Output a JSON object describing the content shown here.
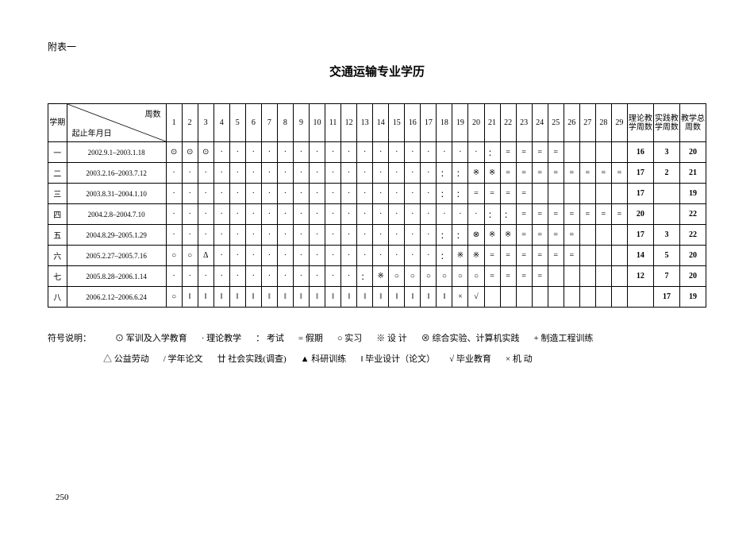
{
  "appendix": "附表一",
  "title": "交通运输专业学历",
  "header": {
    "semester": "学期",
    "diag_top": "周数",
    "diag_bot": "起止年月日",
    "week_count": 29,
    "sum1": "理论教学周数",
    "sum2": "实践教学周数",
    "sum3": "教学总周数"
  },
  "rows": [
    {
      "sem": "一",
      "date": "2002.9.1–2003.1.18",
      "cells": [
        "⊙",
        "⊙",
        "⊙",
        "·",
        "·",
        "·",
        "·",
        "·",
        "·",
        "·",
        "·",
        "·",
        "·",
        "·",
        "·",
        "·",
        "·",
        "·",
        "·",
        "·",
        "：",
        "=",
        "=",
        "=",
        "=",
        "",
        "",
        "",
        ""
      ],
      "s1": "16",
      "s2": "3",
      "s3": "20"
    },
    {
      "sem": "二",
      "date": "2003.2.16–2003.7.12",
      "cells": [
        "·",
        "·",
        "·",
        "·",
        "·",
        "·",
        "·",
        "·",
        "·",
        "·",
        "·",
        "·",
        "·",
        "·",
        "·",
        "·",
        "·",
        "：",
        "：",
        "※",
        "※",
        "=",
        "=",
        "=",
        "=",
        "=",
        "=",
        "=",
        "="
      ],
      "s1": "17",
      "s2": "2",
      "s3": "21"
    },
    {
      "sem": "三",
      "date": "2003.8.31–2004.1.10",
      "cells": [
        "·",
        "·",
        "·",
        "·",
        "·",
        "·",
        "·",
        "·",
        "·",
        "·",
        "·",
        "·",
        "·",
        "·",
        "·",
        "·",
        "·",
        "：",
        "：",
        "=",
        "=",
        "=",
        "=",
        "",
        "",
        "",
        "",
        "",
        ""
      ],
      "s1": "17",
      "s2": "",
      "s3": "19"
    },
    {
      "sem": "四",
      "date": "2004.2.8–2004.7.10",
      "cells": [
        "·",
        "·",
        "·",
        "·",
        "·",
        "·",
        "·",
        "·",
        "·",
        "·",
        "·",
        "·",
        "·",
        "·",
        "·",
        "·",
        "·",
        "·",
        "·",
        "·",
        "：",
        "：",
        "=",
        "=",
        "=",
        "=",
        "=",
        "=",
        "="
      ],
      "s1": "20",
      "s2": "",
      "s3": "22"
    },
    {
      "sem": "五",
      "date": "2004.8.29–2005.1.29",
      "cells": [
        "·",
        "·",
        "·",
        "·",
        "·",
        "·",
        "·",
        "·",
        "·",
        "·",
        "·",
        "·",
        "·",
        "·",
        "·",
        "·",
        "·",
        "：",
        "：",
        "⊗",
        "※",
        "※",
        "=",
        "=",
        "=",
        "=",
        "",
        "",
        ""
      ],
      "s1": "17",
      "s2": "3",
      "s3": "22"
    },
    {
      "sem": "六",
      "date": "2005.2.27–2005.7.16",
      "cells": [
        "○",
        "○",
        "Δ",
        "·",
        "·",
        "·",
        "·",
        "·",
        "·",
        "·",
        "·",
        "·",
        "·",
        "·",
        "·",
        "·",
        "·",
        "：",
        "※",
        "※",
        "=",
        "=",
        "=",
        "=",
        "=",
        "=",
        "",
        "",
        ""
      ],
      "s1": "14",
      "s2": "5",
      "s3": "20"
    },
    {
      "sem": "七",
      "date": "2005.8.28–2006.1.14",
      "cells": [
        "·",
        "·",
        "·",
        "·",
        "·",
        "·",
        "·",
        "·",
        "·",
        "·",
        "·",
        "·",
        "：",
        "※",
        "○",
        "○",
        "○",
        "○",
        "○",
        "○",
        "=",
        "=",
        "=",
        "=",
        "",
        "",
        "",
        "",
        ""
      ],
      "s1": "12",
      "s2": "7",
      "s3": "20"
    },
    {
      "sem": "八",
      "date": "2006.2.12–2006.6.24",
      "cells": [
        "○",
        "‖",
        "‖",
        "‖",
        "‖",
        "‖",
        "‖",
        "‖",
        "‖",
        "‖",
        "‖",
        "‖",
        "‖",
        "‖",
        "‖",
        "‖",
        "‖",
        "‖",
        "×",
        "√",
        "",
        "",
        "",
        "",
        "",
        "",
        "",
        "",
        ""
      ],
      "s1": "",
      "s2": "17",
      "s3": "19"
    }
  ],
  "legend": {
    "lead": "符号说明：",
    "row1": [
      {
        "sym": "⊙",
        "txt": "军训及入学教育"
      },
      {
        "sym": "·",
        "txt": "理论教学"
      },
      {
        "sym": "：",
        "txt": "考试"
      },
      {
        "sym": "=",
        "txt": "假期"
      },
      {
        "sym": "○",
        "txt": "实习"
      },
      {
        "sym": "※",
        "txt": "设 计"
      },
      {
        "sym": "⊗",
        "txt": "综合实验、计算机实践"
      },
      {
        "sym": "+",
        "txt": "制造工程训练"
      }
    ],
    "row2": [
      {
        "sym": "△",
        "txt": "公益劳动"
      },
      {
        "sym": "/",
        "txt": "学年论文"
      },
      {
        "sym": "廿",
        "txt": "社会实践(调查)"
      },
      {
        "sym": "▲",
        "txt": "科研训练"
      },
      {
        "sym": "‖",
        "txt": "毕业设计（论文）"
      },
      {
        "sym": "√",
        "txt": "毕业教育"
      },
      {
        "sym": "×",
        "txt": "机 动"
      }
    ]
  },
  "page": "250"
}
